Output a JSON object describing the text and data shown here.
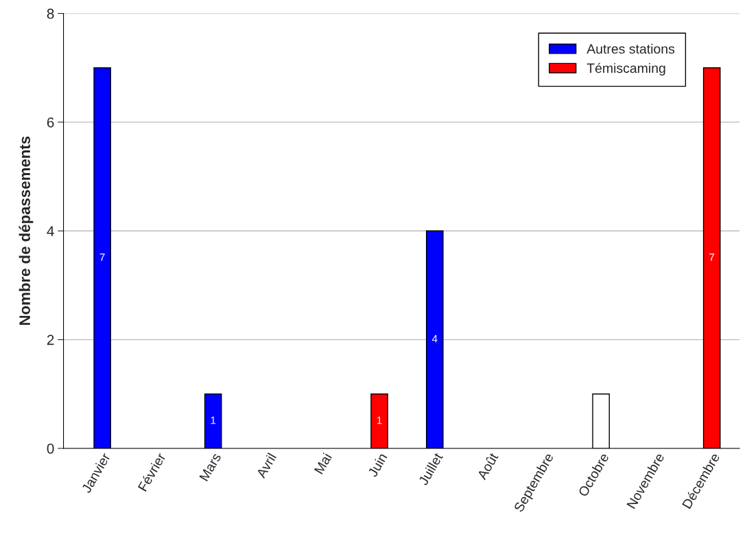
{
  "chart_data": {
    "type": "bar",
    "stacked": true,
    "ylabel": "Nombre de dépassements",
    "categories": [
      "Janvier",
      "Février",
      "Mars",
      "Avril",
      "Mai",
      "Juin",
      "Juillet",
      "Août",
      "Septembre",
      "Octobre",
      "Novembre",
      "Décembre"
    ],
    "series": [
      {
        "name": "Autres stations",
        "color": "#0000ff",
        "values": [
          7,
          null,
          1,
          null,
          null,
          null,
          4,
          null,
          null,
          null,
          null,
          null
        ],
        "value_labels": [
          "7",
          null,
          "1",
          null,
          null,
          null,
          "4",
          null,
          null,
          null,
          null,
          null
        ]
      },
      {
        "name": "Témiscaming",
        "color": "#ff0000",
        "values": [
          null,
          null,
          null,
          null,
          null,
          1,
          null,
          null,
          null,
          null,
          null,
          7
        ],
        "value_labels": [
          null,
          null,
          null,
          null,
          null,
          "1",
          null,
          null,
          null,
          null,
          null,
          "7"
        ]
      },
      {
        "color": "#ffffff",
        "values": [
          null,
          null,
          null,
          null,
          null,
          null,
          null,
          null,
          null,
          1,
          null,
          null
        ]
      }
    ],
    "ylim": [
      0,
      8
    ],
    "yticks": [
      0,
      2,
      4,
      6,
      8
    ],
    "grid": "y",
    "legend": "top right"
  }
}
